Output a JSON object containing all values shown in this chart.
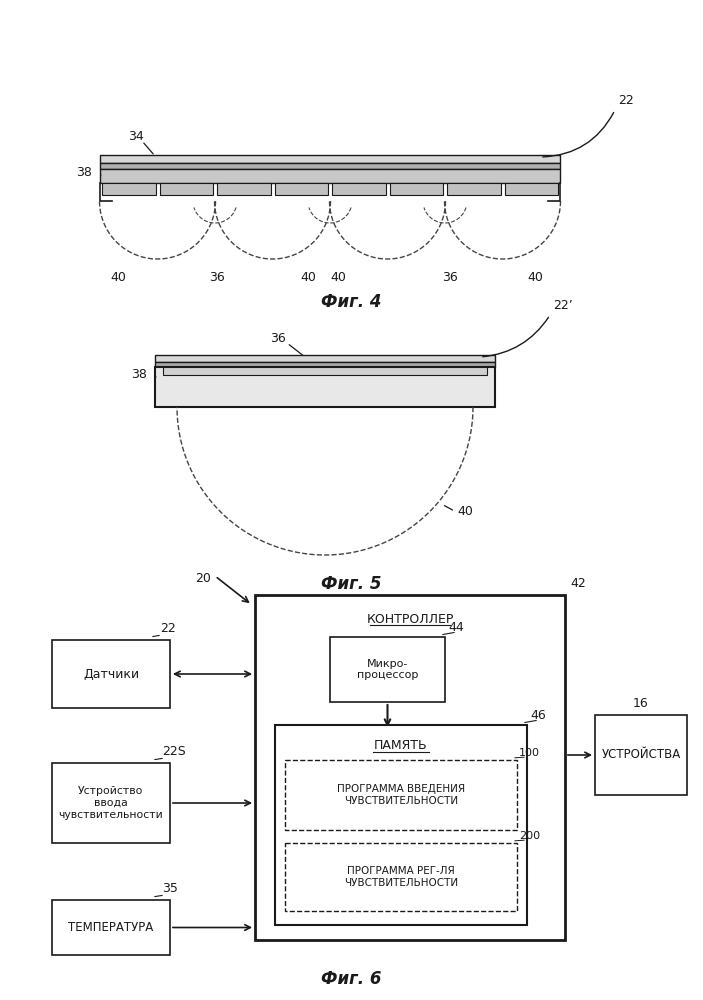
{
  "fig4_label": "Фиг. 4",
  "fig5_label": "Фиг. 5",
  "fig6_label": "Фиг. 6",
  "bg_color": "#ffffff",
  "line_color": "#1a1a1a",
  "dashed_color": "#444444",
  "label_22_fig4": "22",
  "label_34": "34",
  "label_38_fig4": "38",
  "label_36_fig4a": "36",
  "label_36_fig4b": "36",
  "label_40_1": "40",
  "label_40_2": "40",
  "label_40_3": "40",
  "label_40_4": "40",
  "label_22p": "22’",
  "label_38_fig5": "38",
  "label_36_fig5": "36",
  "label_40_fig5": "40",
  "label_20": "20",
  "label_42": "42",
  "label_22_fig6": "22",
  "label_225": "22S",
  "label_35": "35",
  "label_44": "44",
  "label_46": "46",
  "label_16": "16",
  "label_100": "100",
  "label_200": "200",
  "box_sensors": "Датчики",
  "box_input_dev": "Устройство\nввода\nчувствительности",
  "box_temp": "ТЕМПЕРАТУРА",
  "box_controller": "КОНТРОЛЛЕР",
  "box_micro": "Микро-\nпроцессор",
  "box_memory": "ПАМЯТЬ",
  "box_prog1": "ПРОГРАММА ВВЕДЕНИЯ\nЧУВСТВИТЕЛЬНОСТИ",
  "box_prog2": "ПРОГРАММА РЕГ-ЛЯ\nЧУВСТВИТЕЛЬНОСТИ",
  "box_devices": "УСТРОЙСТВА"
}
